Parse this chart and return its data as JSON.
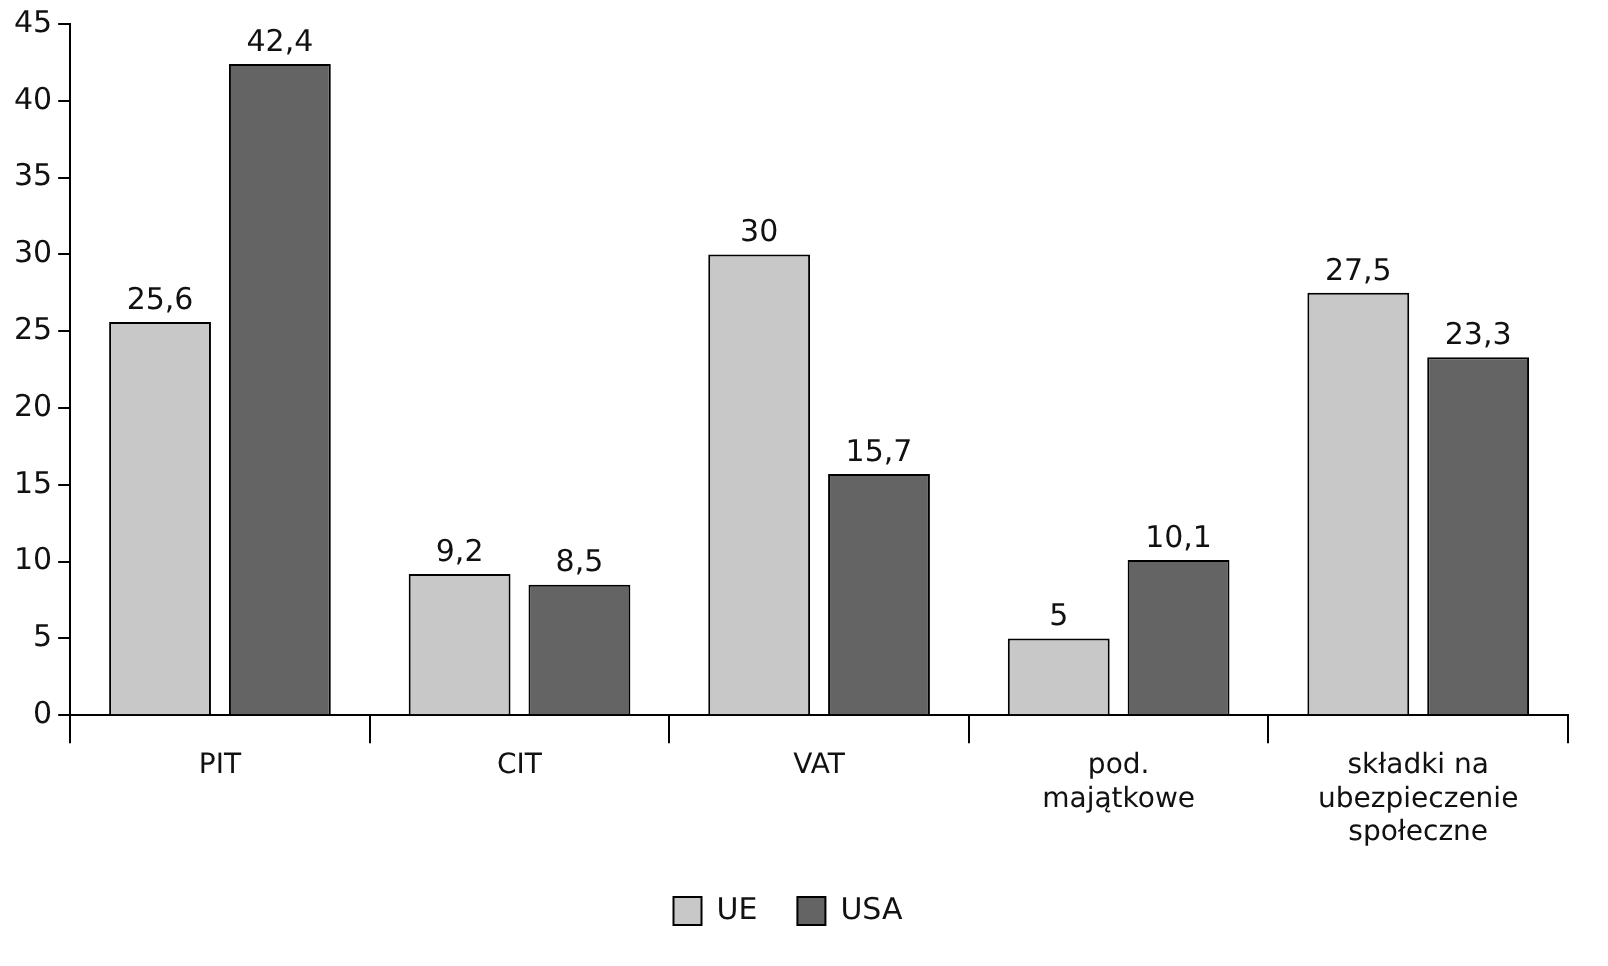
{
  "chart_data": {
    "type": "bar",
    "categories": [
      "PIT",
      "CIT",
      "VAT",
      "pod. majątkowe",
      "składki na ubezpieczenie społeczne"
    ],
    "series": [
      {
        "name": "UE",
        "color": "#c8c8c8",
        "values": [
          25.6,
          9.2,
          30,
          5,
          27.5
        ],
        "value_labels": [
          "25,6",
          "9,2",
          "30",
          "5",
          "27,5"
        ]
      },
      {
        "name": "USA",
        "color": "#646464",
        "values": [
          42.4,
          8.5,
          15.7,
          10.1,
          23.3
        ],
        "value_labels": [
          "42,4",
          "8,5",
          "15,7",
          "10,1",
          "23,3"
        ]
      }
    ],
    "ylim": [
      0,
      45
    ],
    "yticks": [
      0,
      5,
      10,
      15,
      20,
      25,
      30,
      35,
      40,
      45
    ],
    "grid": false,
    "legend": "bottom"
  }
}
